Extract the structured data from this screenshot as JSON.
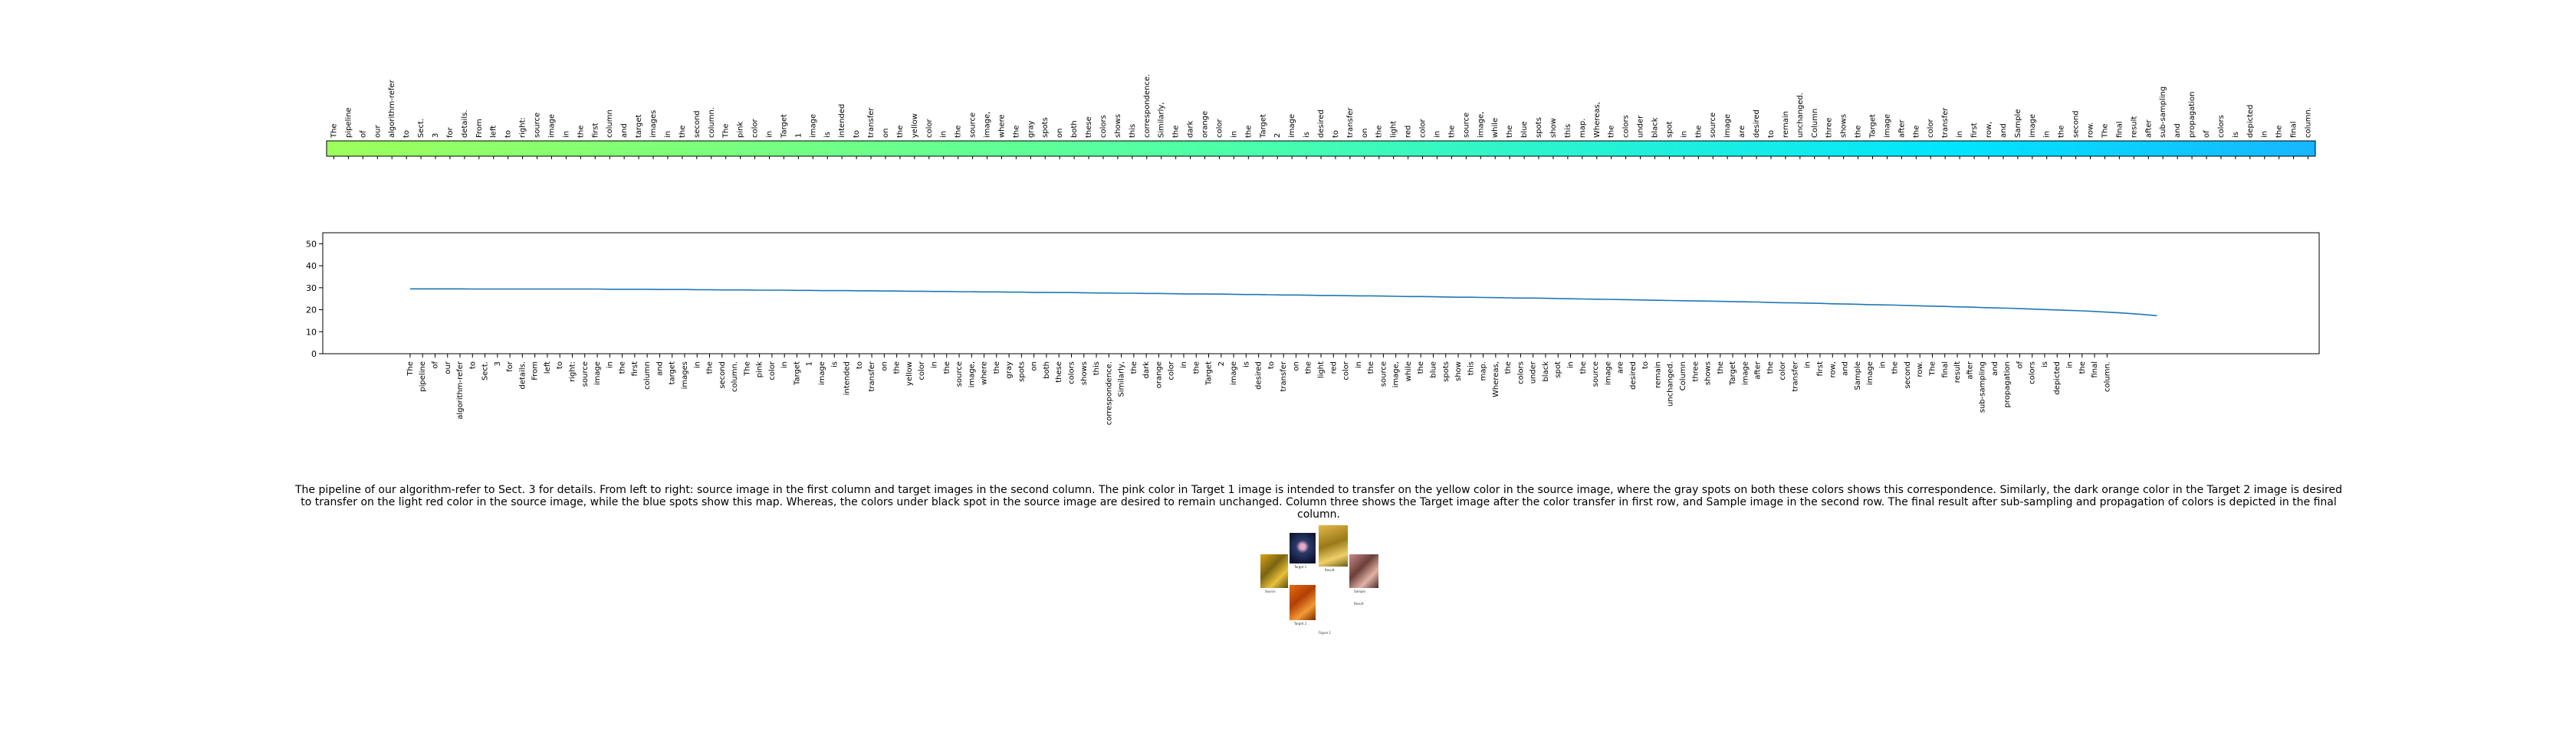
{
  "chart_data": [
    {
      "type": "heatmap",
      "words": [
        "The",
        "pipeline",
        "of",
        "our",
        "algorithm-refer",
        "to",
        "Sect.",
        "3",
        "for",
        "details.",
        "From",
        "left",
        "to",
        "right:",
        "source",
        "image",
        "in",
        "the",
        "first",
        "column",
        "and",
        "target",
        "images",
        "in",
        "the",
        "second",
        "column.",
        "The",
        "pink",
        "color",
        "in",
        "Target",
        "1",
        "image",
        "is",
        "intended",
        "to",
        "transfer",
        "on",
        "the",
        "yellow",
        "color",
        "in",
        "the",
        "source",
        "image,",
        "where",
        "the",
        "gray",
        "spots",
        "on",
        "both",
        "these",
        "colors",
        "shows",
        "this",
        "correspondence.",
        "Similarly,",
        "the",
        "dark",
        "orange",
        "color",
        "in",
        "the",
        "Target",
        "2",
        "image",
        "is",
        "desired",
        "to",
        "transfer",
        "on",
        "the",
        "light",
        "red",
        "color",
        "in",
        "the",
        "source",
        "image,",
        "while",
        "the",
        "blue",
        "spots",
        "show",
        "this",
        "map.",
        "Whereas,",
        "the",
        "colors",
        "under",
        "black",
        "spot",
        "in",
        "the",
        "source",
        "image",
        "are",
        "desired",
        "to",
        "remain",
        "unchanged.",
        "Column",
        "three",
        "shows",
        "the",
        "Target",
        "image",
        "after",
        "the",
        "color",
        "transfer",
        "in",
        "first",
        "row,",
        "and",
        "Sample",
        "image",
        "in",
        "the",
        "second",
        "row.",
        "The",
        "final",
        "result",
        "after",
        "sub-sampling",
        "and",
        "propagation",
        "of",
        "colors",
        "is",
        "depicted",
        "in",
        "the",
        "final",
        "column."
      ],
      "colormap": [
        "#9dff5c",
        "#4dffa8",
        "#00e5ff",
        "#17b6ff"
      ]
    },
    {
      "type": "line",
      "x_start": 7,
      "x_end": 147,
      "values": [
        29.5,
        29.5,
        29.5,
        29.5,
        29.5,
        29.4,
        29.4,
        29.4,
        29.4,
        29.4,
        29.4,
        29.4,
        29.4,
        29.4,
        29.4,
        29.4,
        29.3,
        29.3,
        29.3,
        29.3,
        29.2,
        29.2,
        29.2,
        29.1,
        29.1,
        29.0,
        29.0,
        29.0,
        28.9,
        28.9,
        28.9,
        28.8,
        28.8,
        28.7,
        28.7,
        28.7,
        28.6,
        28.6,
        28.5,
        28.5,
        28.4,
        28.4,
        28.3,
        28.3,
        28.2,
        28.2,
        28.1,
        28.1,
        28.0,
        28.0,
        27.9,
        27.9,
        27.8,
        27.8,
        27.7,
        27.6,
        27.6,
        27.5,
        27.5,
        27.4,
        27.4,
        27.3,
        27.2,
        27.2,
        27.1,
        27.1,
        27.0,
        26.9,
        26.9,
        26.8,
        26.7,
        26.7,
        26.6,
        26.5,
        26.5,
        26.4,
        26.3,
        26.3,
        26.2,
        26.1,
        26.0,
        26.0,
        25.9,
        25.8,
        25.7,
        25.7,
        25.6,
        25.5,
        25.4,
        25.3,
        25.3,
        25.2,
        25.1,
        25.0,
        24.9,
        24.8,
        24.7,
        24.6,
        24.5,
        24.4,
        24.3,
        24.2,
        24.1,
        24.0,
        23.9,
        23.8,
        23.7,
        23.6,
        23.5,
        23.3,
        23.2,
        23.1,
        23.0,
        22.9,
        22.7,
        22.6,
        22.5,
        22.3,
        22.2,
        22.1,
        21.9,
        21.8,
        21.6,
        21.5,
        21.3,
        21.2,
        21.0,
        20.8,
        20.7,
        20.5,
        20.3,
        20.1,
        19.9,
        19.7,
        19.5,
        19.2,
        18.9,
        18.6,
        18.2,
        17.8,
        17.3
      ],
      "ylim": [
        0,
        55
      ],
      "yticks": [
        0,
        10,
        20,
        30,
        40,
        50
      ],
      "line_color": "#1f77b4",
      "xticks_start": 7,
      "xlabel": "",
      "ylabel": ""
    }
  ],
  "caption": "The pipeline of our algorithm-refer to Sect. 3 for details. From left to right: source image in the first column and target images in the second column. The pink color in Target 1 image is intended to transfer on the yellow color in the source image, where the gray spots on both these colors shows this correspondence. Similarly, the dark orange color in the Target 2 image is desired to transfer on the light red color in the source image, while the blue spots show this map. Whereas, the colors under black spot in the source image are desired to remain unchanged. Column three shows the Target image after the color transfer in first row, and Sample image in the second row. The final result after sub-sampling and propagation of colors is depicted in the final column.",
  "thumbnail": {
    "labels": [
      "Source",
      "Target 1",
      "Target 2",
      "Result",
      "Sample",
      "Result",
      "Figure 1"
    ]
  }
}
